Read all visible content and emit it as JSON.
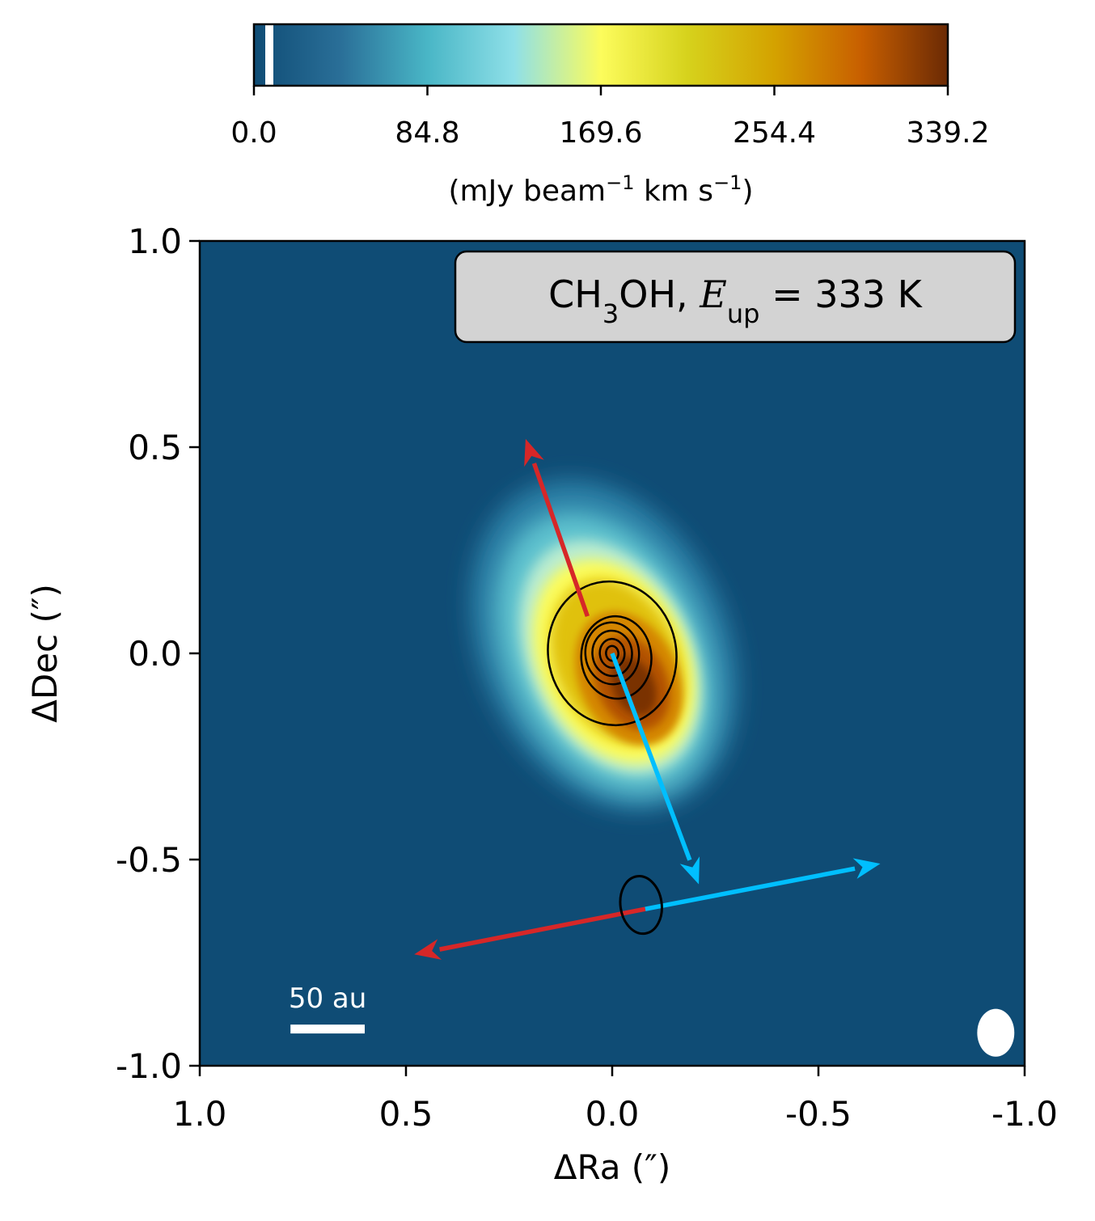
{
  "chart_data": {
    "type": "heatmap",
    "title": "",
    "xlabel": "ΔRa (″)",
    "ylabel": "ΔDec (″)",
    "xlim": [
      1.0,
      -1.0
    ],
    "ylim": [
      -1.0,
      1.0
    ],
    "x_ticks": [
      1.0,
      0.5,
      0.0,
      -0.5,
      -1.0
    ],
    "x_tick_labels": [
      "1.0",
      "0.5",
      "0.0",
      "-0.5",
      "-1.0"
    ],
    "y_ticks": [
      1.0,
      0.5,
      0.0,
      -0.5,
      -1.0
    ],
    "y_tick_labels": [
      "1.0",
      "0.5",
      "0.0",
      "-0.5",
      "-1.0"
    ],
    "grid": false,
    "annotation": {
      "molecule_main": "CH",
      "molecule_sub": "3",
      "molecule_rest": "OH, ",
      "energy_symbol": "E",
      "energy_sub": "up",
      "energy_value": " = 333 K"
    },
    "colorbar": {
      "ticks": [
        0.0,
        84.8,
        169.6,
        254.4,
        339.2
      ],
      "tick_labels": [
        "0.0",
        "84.8",
        "169.6",
        "254.4",
        "339.2"
      ],
      "range": [
        0.0,
        339.2
      ],
      "label_prefix": "(mJy beam",
      "label_exp1": "−1",
      "label_mid": " km s",
      "label_exp2": "−1",
      "label_suffix": ")",
      "colors": [
        "#0f4c75",
        "#2a6f98",
        "#49b6c6",
        "#8fe0e8",
        "#fcfc5c",
        "#d6d21c",
        "#d4a200",
        "#c85f00",
        "#6b2a05"
      ]
    },
    "scale_bar": {
      "label": "50 au",
      "length_arcsec": 0.18,
      "ra": 0.78,
      "dec": -0.91
    },
    "emission": {
      "center": [
        0.0,
        0.0
      ],
      "peak_offset": [
        -0.04,
        -0.06
      ],
      "orientation_deg": -25
    },
    "contours": [
      {
        "center_ra": 0.0,
        "center_dec": 0.0,
        "a": 0.155,
        "b": 0.175
      },
      {
        "center_ra": -0.01,
        "center_dec": -0.01,
        "a": 0.085,
        "b": 0.1
      },
      {
        "center_ra": 0.0,
        "center_dec": 0.0,
        "a": 0.065,
        "b": 0.075
      },
      {
        "center_ra": 0.0,
        "center_dec": 0.0,
        "a": 0.048,
        "b": 0.055
      },
      {
        "center_ra": 0.0,
        "center_dec": 0.0,
        "a": 0.03,
        "b": 0.035
      },
      {
        "center_ra": 0.0,
        "center_dec": 0.0,
        "a": 0.015,
        "b": 0.018
      }
    ],
    "outflow_arrows": [
      {
        "from": [
          0.06,
          0.09
        ],
        "to": [
          0.21,
          0.52
        ],
        "color": "#d62728"
      },
      {
        "from": [
          0.0,
          0.0
        ],
        "to": [
          -0.21,
          -0.56
        ],
        "color": "#00bfff"
      }
    ],
    "disk_arrows": [
      {
        "from": [
          -0.08,
          -0.62
        ],
        "to": [
          -0.65,
          -0.51
        ],
        "color": "#00bfff"
      },
      {
        "from": [
          -0.08,
          -0.62
        ],
        "to": [
          0.48,
          -0.73
        ],
        "color": "#d62728"
      }
    ],
    "marker_ellipse": {
      "ra": -0.07,
      "dec": -0.61,
      "a": 0.05,
      "b": 0.07
    },
    "beam": {
      "ra": -0.93,
      "dec": -0.92,
      "a": 0.045,
      "b": 0.058
    }
  }
}
